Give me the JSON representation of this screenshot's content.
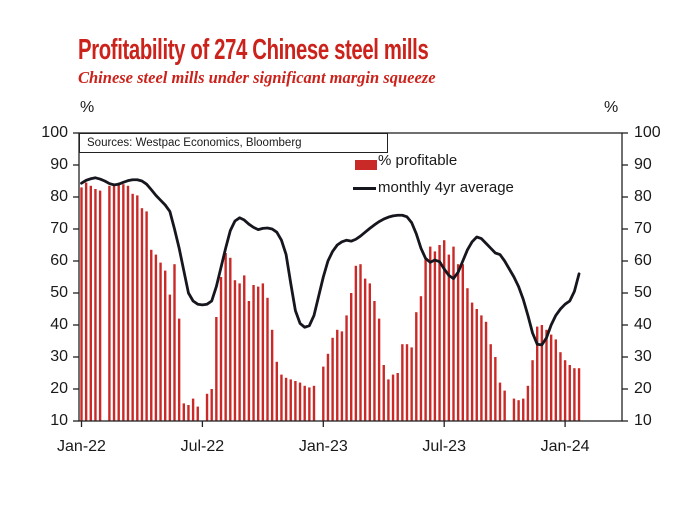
{
  "header": {
    "title": "Profitability of 274 Chinese steel mills",
    "subtitle": "Chinese steel mills under significant margin squeeze"
  },
  "sources_note": "Sources: Westpac Economics, Bloomberg",
  "legend": {
    "bar_label": "% profitable",
    "line_label": "monthly 4yr average"
  },
  "axis": {
    "left_unit": "%",
    "right_unit": "%",
    "y_ticks": [
      100,
      90,
      80,
      70,
      60,
      50,
      40,
      30,
      20,
      10
    ],
    "x_ticks": [
      {
        "label": "Jan-22",
        "index": 0
      },
      {
        "label": "Jul-22",
        "index": 26
      },
      {
        "label": "Jan-23",
        "index": 52
      },
      {
        "label": "Jul-23",
        "index": 78
      },
      {
        "label": "Jan-24",
        "index": 104
      }
    ]
  },
  "colors": {
    "title_red": "#cb231c",
    "bar_red": "#c92a28",
    "line_dark": "#16161e",
    "axis": "#222222",
    "text": "#1a1a1a"
  },
  "chart_data": {
    "type": "bar",
    "title": "Profitability of 274 Chinese steel mills",
    "xlabel": "",
    "ylabel": "%",
    "ylim": [
      10,
      100
    ],
    "x_frequency": "weekly",
    "x_range": "Jan-2022 to Feb-2024",
    "x_tick_labels": [
      "Jan-22",
      "Jul-22",
      "Jan-23",
      "Jul-23",
      "Jan-24"
    ],
    "x_tick_indices": [
      0,
      26,
      52,
      78,
      104
    ],
    "grid": false,
    "legend_position": "top-right-inside",
    "series": [
      {
        "name": "% profitable",
        "render": "bar",
        "values": [
          83,
          84.5,
          83.5,
          82.5,
          82,
          null,
          83.5,
          84,
          84.5,
          84,
          83.5,
          81,
          80.5,
          76.5,
          75.5,
          63.5,
          62,
          59.5,
          57,
          49.5,
          59,
          42,
          15.5,
          15,
          17,
          14.5,
          null,
          18.5,
          20,
          42.5,
          55,
          62.5,
          61,
          54,
          53,
          55.5,
          47.5,
          52.5,
          52,
          53,
          48.5,
          38.5,
          28.5,
          24.5,
          23.5,
          23,
          22.5,
          22,
          21,
          20.5,
          21,
          null,
          27,
          31,
          36,
          38.5,
          38,
          43,
          50,
          58.5,
          59,
          54.5,
          53,
          47.5,
          42,
          27.5,
          23,
          24.5,
          25,
          34,
          34,
          33,
          44,
          49,
          60.5,
          64.5,
          63,
          65,
          66.5,
          62,
          64.5,
          59,
          59,
          51.5,
          47,
          45,
          43,
          41,
          34,
          30,
          22,
          19.5,
          null,
          17,
          16.5,
          17,
          21,
          29,
          39.5,
          40,
          38.5,
          37,
          35.5,
          31.5,
          29,
          27.5,
          26.5,
          26.5
        ]
      },
      {
        "name": "monthly 4yr average",
        "render": "line",
        "values": [
          84.3,
          85.2,
          85.7,
          86,
          85.6,
          85,
          84.2,
          83.8,
          84,
          84.6,
          85.1,
          85.4,
          85.4,
          85,
          84,
          82.3,
          80.5,
          79,
          77.5,
          75.5,
          70,
          64,
          57,
          50,
          47.5,
          46.5,
          46.3,
          46.5,
          47.5,
          52,
          58,
          64,
          69.5,
          72.5,
          73.5,
          72.8,
          71.5,
          70.5,
          69.8,
          70.2,
          70.3,
          70,
          69,
          66.5,
          62,
          53,
          44.5,
          40.5,
          39.3,
          39.8,
          43,
          49,
          55,
          60,
          63,
          65,
          66,
          66.5,
          66.2,
          66.8,
          67.8,
          69,
          70.2,
          71.3,
          72.3,
          73.1,
          73.7,
          74.1,
          74.3,
          74.3,
          73.8,
          72,
          68.5,
          64,
          60.8,
          59.6,
          60.3,
          59.8,
          57.5,
          55.5,
          54.5,
          56.5,
          60,
          63.5,
          66,
          67.5,
          67,
          65.5,
          64,
          62.5,
          62,
          60,
          57.5,
          55,
          52,
          48,
          43,
          37.5,
          34,
          33.8,
          36,
          40,
          43,
          45,
          46.5,
          47.5,
          50.5,
          56
        ]
      }
    ]
  }
}
